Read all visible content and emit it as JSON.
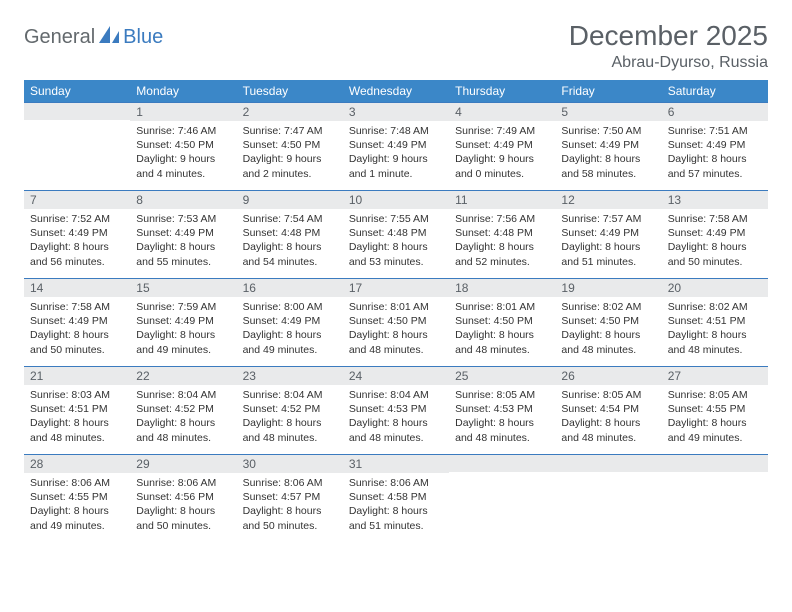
{
  "logo": {
    "part1": "General",
    "part2": "Blue"
  },
  "title": "December 2025",
  "location": "Abrau-Dyurso, Russia",
  "colors": {
    "header_bg": "#3b87c8",
    "daynum_bg": "#e9eaeb",
    "border": "#3b7bbf",
    "text": "#5a6066"
  },
  "daynames": [
    "Sunday",
    "Monday",
    "Tuesday",
    "Wednesday",
    "Thursday",
    "Friday",
    "Saturday"
  ],
  "weeks": [
    [
      {
        "n": "",
        "sunrise": "",
        "sunset": "",
        "daylight": ""
      },
      {
        "n": "1",
        "sunrise": "Sunrise: 7:46 AM",
        "sunset": "Sunset: 4:50 PM",
        "daylight": "Daylight: 9 hours and 4 minutes."
      },
      {
        "n": "2",
        "sunrise": "Sunrise: 7:47 AM",
        "sunset": "Sunset: 4:50 PM",
        "daylight": "Daylight: 9 hours and 2 minutes."
      },
      {
        "n": "3",
        "sunrise": "Sunrise: 7:48 AM",
        "sunset": "Sunset: 4:49 PM",
        "daylight": "Daylight: 9 hours and 1 minute."
      },
      {
        "n": "4",
        "sunrise": "Sunrise: 7:49 AM",
        "sunset": "Sunset: 4:49 PM",
        "daylight": "Daylight: 9 hours and 0 minutes."
      },
      {
        "n": "5",
        "sunrise": "Sunrise: 7:50 AM",
        "sunset": "Sunset: 4:49 PM",
        "daylight": "Daylight: 8 hours and 58 minutes."
      },
      {
        "n": "6",
        "sunrise": "Sunrise: 7:51 AM",
        "sunset": "Sunset: 4:49 PM",
        "daylight": "Daylight: 8 hours and 57 minutes."
      }
    ],
    [
      {
        "n": "7",
        "sunrise": "Sunrise: 7:52 AM",
        "sunset": "Sunset: 4:49 PM",
        "daylight": "Daylight: 8 hours and 56 minutes."
      },
      {
        "n": "8",
        "sunrise": "Sunrise: 7:53 AM",
        "sunset": "Sunset: 4:49 PM",
        "daylight": "Daylight: 8 hours and 55 minutes."
      },
      {
        "n": "9",
        "sunrise": "Sunrise: 7:54 AM",
        "sunset": "Sunset: 4:48 PM",
        "daylight": "Daylight: 8 hours and 54 minutes."
      },
      {
        "n": "10",
        "sunrise": "Sunrise: 7:55 AM",
        "sunset": "Sunset: 4:48 PM",
        "daylight": "Daylight: 8 hours and 53 minutes."
      },
      {
        "n": "11",
        "sunrise": "Sunrise: 7:56 AM",
        "sunset": "Sunset: 4:48 PM",
        "daylight": "Daylight: 8 hours and 52 minutes."
      },
      {
        "n": "12",
        "sunrise": "Sunrise: 7:57 AM",
        "sunset": "Sunset: 4:49 PM",
        "daylight": "Daylight: 8 hours and 51 minutes."
      },
      {
        "n": "13",
        "sunrise": "Sunrise: 7:58 AM",
        "sunset": "Sunset: 4:49 PM",
        "daylight": "Daylight: 8 hours and 50 minutes."
      }
    ],
    [
      {
        "n": "14",
        "sunrise": "Sunrise: 7:58 AM",
        "sunset": "Sunset: 4:49 PM",
        "daylight": "Daylight: 8 hours and 50 minutes."
      },
      {
        "n": "15",
        "sunrise": "Sunrise: 7:59 AM",
        "sunset": "Sunset: 4:49 PM",
        "daylight": "Daylight: 8 hours and 49 minutes."
      },
      {
        "n": "16",
        "sunrise": "Sunrise: 8:00 AM",
        "sunset": "Sunset: 4:49 PM",
        "daylight": "Daylight: 8 hours and 49 minutes."
      },
      {
        "n": "17",
        "sunrise": "Sunrise: 8:01 AM",
        "sunset": "Sunset: 4:50 PM",
        "daylight": "Daylight: 8 hours and 48 minutes."
      },
      {
        "n": "18",
        "sunrise": "Sunrise: 8:01 AM",
        "sunset": "Sunset: 4:50 PM",
        "daylight": "Daylight: 8 hours and 48 minutes."
      },
      {
        "n": "19",
        "sunrise": "Sunrise: 8:02 AM",
        "sunset": "Sunset: 4:50 PM",
        "daylight": "Daylight: 8 hours and 48 minutes."
      },
      {
        "n": "20",
        "sunrise": "Sunrise: 8:02 AM",
        "sunset": "Sunset: 4:51 PM",
        "daylight": "Daylight: 8 hours and 48 minutes."
      }
    ],
    [
      {
        "n": "21",
        "sunrise": "Sunrise: 8:03 AM",
        "sunset": "Sunset: 4:51 PM",
        "daylight": "Daylight: 8 hours and 48 minutes."
      },
      {
        "n": "22",
        "sunrise": "Sunrise: 8:04 AM",
        "sunset": "Sunset: 4:52 PM",
        "daylight": "Daylight: 8 hours and 48 minutes."
      },
      {
        "n": "23",
        "sunrise": "Sunrise: 8:04 AM",
        "sunset": "Sunset: 4:52 PM",
        "daylight": "Daylight: 8 hours and 48 minutes."
      },
      {
        "n": "24",
        "sunrise": "Sunrise: 8:04 AM",
        "sunset": "Sunset: 4:53 PM",
        "daylight": "Daylight: 8 hours and 48 minutes."
      },
      {
        "n": "25",
        "sunrise": "Sunrise: 8:05 AM",
        "sunset": "Sunset: 4:53 PM",
        "daylight": "Daylight: 8 hours and 48 minutes."
      },
      {
        "n": "26",
        "sunrise": "Sunrise: 8:05 AM",
        "sunset": "Sunset: 4:54 PM",
        "daylight": "Daylight: 8 hours and 48 minutes."
      },
      {
        "n": "27",
        "sunrise": "Sunrise: 8:05 AM",
        "sunset": "Sunset: 4:55 PM",
        "daylight": "Daylight: 8 hours and 49 minutes."
      }
    ],
    [
      {
        "n": "28",
        "sunrise": "Sunrise: 8:06 AM",
        "sunset": "Sunset: 4:55 PM",
        "daylight": "Daylight: 8 hours and 49 minutes."
      },
      {
        "n": "29",
        "sunrise": "Sunrise: 8:06 AM",
        "sunset": "Sunset: 4:56 PM",
        "daylight": "Daylight: 8 hours and 50 minutes."
      },
      {
        "n": "30",
        "sunrise": "Sunrise: 8:06 AM",
        "sunset": "Sunset: 4:57 PM",
        "daylight": "Daylight: 8 hours and 50 minutes."
      },
      {
        "n": "31",
        "sunrise": "Sunrise: 8:06 AM",
        "sunset": "Sunset: 4:58 PM",
        "daylight": "Daylight: 8 hours and 51 minutes."
      },
      {
        "n": "",
        "sunrise": "",
        "sunset": "",
        "daylight": ""
      },
      {
        "n": "",
        "sunrise": "",
        "sunset": "",
        "daylight": ""
      },
      {
        "n": "",
        "sunrise": "",
        "sunset": "",
        "daylight": ""
      }
    ]
  ]
}
